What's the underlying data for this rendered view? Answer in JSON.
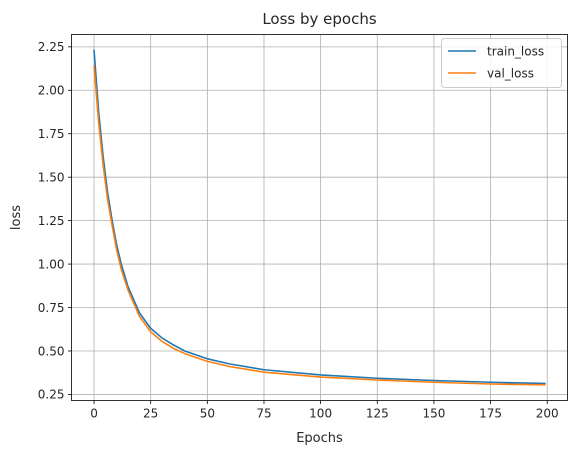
{
  "chart_data": {
    "type": "line",
    "title": "Loss by epochs",
    "xlabel": "Epochs",
    "ylabel": "loss",
    "xlim": [
      -9.95,
      208.95
    ],
    "ylim": [
      0.215,
      2.321
    ],
    "xticks": [
      0,
      25,
      50,
      75,
      100,
      125,
      150,
      175,
      200
    ],
    "yticks": [
      0.25,
      0.5,
      0.75,
      1.0,
      1.25,
      1.5,
      1.75,
      2.0,
      2.25
    ],
    "xtick_labels": [
      "0",
      "25",
      "50",
      "75",
      "100",
      "125",
      "150",
      "175",
      "200"
    ],
    "ytick_labels": [
      "0.25",
      "0.50",
      "0.75",
      "1.00",
      "1.25",
      "1.50",
      "1.75",
      "2.00",
      "2.25"
    ],
    "grid": true,
    "legend": "top-right",
    "x": [
      0,
      2,
      4,
      6,
      8,
      10,
      12,
      15,
      20,
      25,
      30,
      35,
      40,
      50,
      60,
      75,
      100,
      125,
      150,
      175,
      199
    ],
    "series": [
      {
        "name": "train_loss",
        "color": "#1f77b4",
        "values": [
          2.23,
          1.88,
          1.62,
          1.41,
          1.25,
          1.11,
          1.0,
          0.87,
          0.72,
          0.63,
          0.575,
          0.535,
          0.5,
          0.455,
          0.425,
          0.392,
          0.362,
          0.343,
          0.33,
          0.32,
          0.313
        ]
      },
      {
        "name": "val_loss",
        "color": "#ff7f0e",
        "values": [
          2.14,
          1.82,
          1.57,
          1.37,
          1.22,
          1.08,
          0.97,
          0.85,
          0.7,
          0.61,
          0.555,
          0.515,
          0.485,
          0.44,
          0.41,
          0.378,
          0.35,
          0.333,
          0.32,
          0.31,
          0.305
        ]
      }
    ]
  }
}
